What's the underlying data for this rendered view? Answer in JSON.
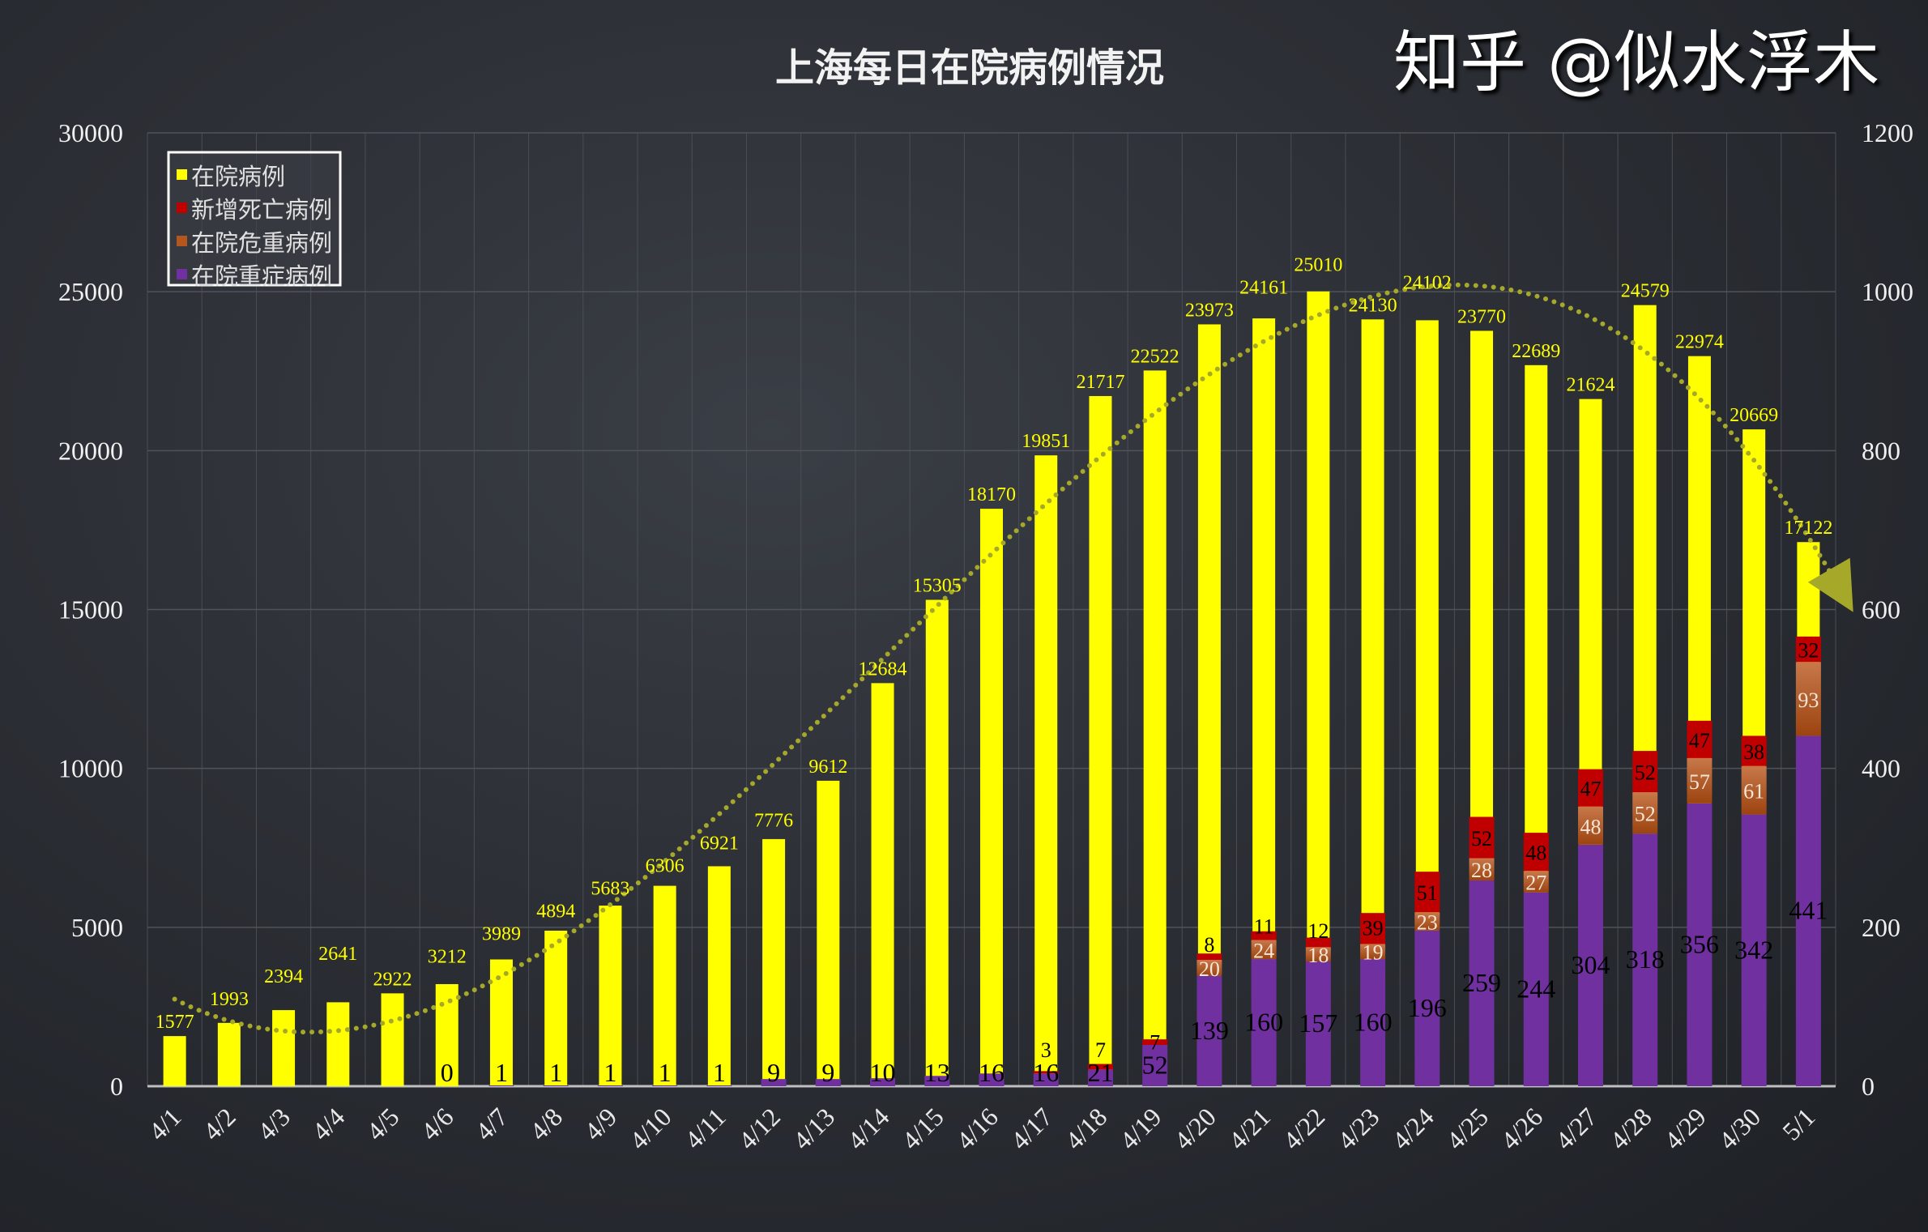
{
  "chart_data": {
    "type": "bar",
    "stacked": true,
    "title": "上海每日在院病例情况",
    "categories": [
      "4/1",
      "4/2",
      "4/3",
      "4/4",
      "4/5",
      "4/6",
      "4/7",
      "4/8",
      "4/9",
      "4/10",
      "4/11",
      "4/12",
      "4/13",
      "4/14",
      "4/15",
      "4/16",
      "4/17",
      "4/18",
      "4/19",
      "4/20",
      "4/21",
      "4/22",
      "4/23",
      "4/24",
      "4/25",
      "4/26",
      "4/27",
      "4/28",
      "4/29",
      "4/30",
      "5/1"
    ],
    "y_left": {
      "range": [
        0,
        30000
      ],
      "ticks": [
        "0",
        "5000",
        "10000",
        "15000",
        "20000",
        "25000",
        "30000"
      ]
    },
    "y_right": {
      "range": [
        0,
        1200
      ],
      "ticks": [
        "0",
        "200",
        "400",
        "600",
        "800",
        "1000",
        "1200"
      ]
    },
    "grid": true,
    "legend_position": "top-left",
    "series": [
      {
        "name": "在院病例",
        "axis": "left",
        "color": "#ffff00",
        "values": [
          1577,
          1993,
          2394,
          2641,
          2922,
          3212,
          3989,
          4894,
          5683,
          6306,
          6921,
          7776,
          9612,
          12684,
          15305,
          18170,
          19851,
          21717,
          22522,
          23973,
          24161,
          25010,
          24130,
          24102,
          23770,
          22689,
          21624,
          24579,
          22974,
          20669,
          17122
        ]
      },
      {
        "name": "在院重症病例",
        "axis": "right",
        "color": "#7030a0",
        "values": [
          null,
          null,
          null,
          null,
          null,
          0,
          1,
          1,
          1,
          1,
          1,
          9,
          9,
          10,
          13,
          16,
          16,
          21,
          52,
          139,
          160,
          157,
          160,
          196,
          259,
          244,
          304,
          318,
          356,
          342,
          441
        ]
      },
      {
        "name": "在院危重病例",
        "axis": "right",
        "color": "#b5561f",
        "values": [
          null,
          null,
          null,
          null,
          null,
          null,
          null,
          null,
          null,
          null,
          null,
          null,
          null,
          null,
          null,
          null,
          null,
          null,
          null,
          20,
          24,
          18,
          19,
          23,
          28,
          27,
          48,
          52,
          57,
          61,
          93
        ]
      },
      {
        "name": "新增死亡病例",
        "axis": "right",
        "color": "#c00000",
        "values": [
          null,
          null,
          null,
          null,
          null,
          null,
          null,
          null,
          null,
          null,
          null,
          null,
          null,
          null,
          null,
          null,
          3,
          7,
          7,
          8,
          11,
          12,
          39,
          51,
          52,
          48,
          47,
          52,
          47,
          38,
          32
        ]
      }
    ],
    "legend_order": [
      "在院病例",
      "新增死亡病例",
      "在院危重病例",
      "在院重症病例"
    ],
    "trendline": {
      "series": "在院病例",
      "type": "polynomial",
      "style": "dotted",
      "color": "#a6a82a",
      "arrow_end": true
    }
  },
  "watermark": "知乎 @似水浮木"
}
